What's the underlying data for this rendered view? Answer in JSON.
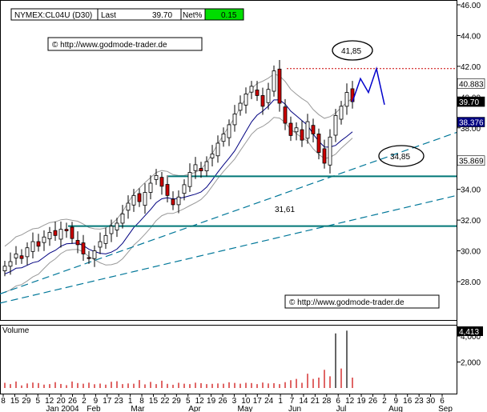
{
  "header": {
    "symbol": "NYMEX:CL04U (D30)",
    "last_label": "Last",
    "last_value": "39.70",
    "net_label": "Net%",
    "net_value": "0.15"
  },
  "watermarks": [
    "© http://www.godmode-trader.de",
    "© http://www.godmode-trader.de"
  ],
  "annotations": {
    "high_label": "41,85",
    "support_label": "34,85",
    "support2_label": "31,61"
  },
  "price_tags": [
    {
      "text": "40.883",
      "value": 40.883,
      "bg": "#ffffff",
      "fg": "#000000"
    },
    {
      "text": "39.70",
      "value": 39.7,
      "bg": "#000000",
      "fg": "#ffffff"
    },
    {
      "text": "38.376",
      "value": 38.376,
      "bg": "#000080",
      "fg": "#ffffff"
    },
    {
      "text": "35.869",
      "value": 35.869,
      "bg": "#ffffff",
      "fg": "#000000"
    }
  ],
  "volume_label": "Volume",
  "volume_tag": "4,413",
  "x_axis": {
    "day_labels": [
      "8",
      "15",
      "29",
      "5",
      "12",
      "20",
      "26",
      "2",
      "9",
      "17",
      "23",
      "1",
      "8",
      "15",
      "22",
      "29",
      "5",
      "12",
      "19",
      "26",
      "3",
      "10",
      "17",
      "24",
      "1",
      "7",
      "14",
      "21",
      "28",
      "6",
      "12",
      "19",
      "26",
      "2",
      "9",
      "16",
      "23",
      "30",
      "6"
    ],
    "month_labels": [
      "Jan 2004",
      "Feb",
      "Mar",
      "Apr",
      "May",
      "Jun",
      "Jul",
      "Aug",
      "Sep"
    ]
  },
  "colors": {
    "up_candle": "#ffffff",
    "down_candle": "#cc0000",
    "horizontal_support": "#007777",
    "trendline": "#007799",
    "projection": "#0000cc",
    "resistance_dotted": "#cc0000",
    "volume_bars": "#cc0000",
    "bands": "#999999",
    "moving_average": "#000080"
  },
  "chart_data": {
    "type": "candlestick",
    "y_axis": {
      "min": 26,
      "max": 46,
      "ticks": [
        28,
        30,
        32,
        34,
        36,
        38,
        40,
        42,
        44,
        46
      ]
    },
    "volume_axis": {
      "ticks": [
        2000,
        4000
      ]
    },
    "horizontal_lines": [
      34.85,
      31.61
    ],
    "resistance_level": 41.85,
    "approx_close_path": [
      29.0,
      29.3,
      29.8,
      29.5,
      30.2,
      30.6,
      30.3,
      30.9,
      31.2,
      31.0,
      31.4,
      31.3,
      30.8,
      30.4,
      29.8,
      29.5,
      30.0,
      30.6,
      31.0,
      31.6,
      31.8,
      32.4,
      33.1,
      33.6,
      33.2,
      33.8,
      34.4,
      34.9,
      34.2,
      33.6,
      33.0,
      33.5,
      34.3,
      35.1,
      35.6,
      35.2,
      35.8,
      36.3,
      37.0,
      37.6,
      38.2,
      38.9,
      39.6,
      40.2,
      40.7,
      40.1,
      39.4,
      40.5,
      41.7,
      39.6,
      38.3,
      37.5,
      38.0,
      37.2,
      38.4,
      37.6,
      36.4,
      35.7,
      37.4,
      38.8,
      39.4,
      40.3,
      39.7
    ],
    "projection_path": [
      39.7,
      41.2,
      40.3,
      41.85,
      39.5
    ],
    "volume_series": [
      400,
      300,
      500,
      200,
      350,
      420,
      380,
      260,
      300,
      450,
      310,
      220,
      500,
      380,
      330,
      410,
      290,
      340,
      260,
      480,
      520,
      300,
      350,
      330,
      610,
      280,
      470,
      300,
      560,
      320,
      250,
      400,
      330,
      300,
      410,
      370,
      300,
      320,
      350,
      330,
      440,
      390,
      330,
      400,
      380,
      300,
      420,
      350,
      370,
      300,
      450,
      600,
      700,
      400,
      1100,
      700,
      800,
      1400,
      900,
      4200,
      1500,
      4413,
      800
    ]
  }
}
